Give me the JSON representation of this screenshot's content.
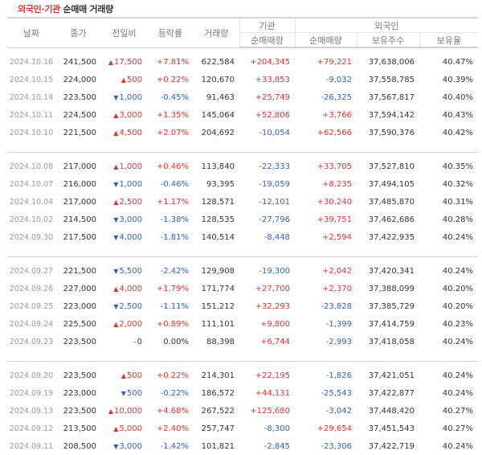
{
  "title": {
    "part1": "외국인",
    "sep": "·",
    "part2": "기관",
    "part3": "순매매 거래량"
  },
  "headers": {
    "date": "날짜",
    "close": "종가",
    "change": "전일비",
    "rate": "등락률",
    "volume": "거래량",
    "inst_group": "기관",
    "foreign_group": "외국인",
    "inst_net": "순매매량",
    "foreign_net": "순매매량",
    "holdings": "보유주수",
    "holding_rate": "보유율"
  },
  "colors": {
    "up": "#e0332e",
    "down": "#2e5fc8"
  },
  "groups": [
    [
      {
        "date": "2024.10.16",
        "close": "241,500",
        "dir": "up",
        "change": "17,500",
        "rate": "+7.81%",
        "volume": "622,584",
        "inst": "+204,345",
        "foreign": "+79,221",
        "holdings": "37,638,006",
        "holding_rate": "40.47%"
      },
      {
        "date": "2024.10.15",
        "close": "224,000",
        "dir": "up",
        "change": "500",
        "rate": "+0.22%",
        "volume": "120,670",
        "inst": "+33,853",
        "foreign": "-9,032",
        "holdings": "37,558,785",
        "holding_rate": "40.39%"
      },
      {
        "date": "2024.10.14",
        "close": "223,500",
        "dir": "down",
        "change": "1,000",
        "rate": "-0.45%",
        "volume": "91,463",
        "inst": "+25,749",
        "foreign": "-26,325",
        "holdings": "37,567,817",
        "holding_rate": "40.40%"
      },
      {
        "date": "2024.10.11",
        "close": "224,500",
        "dir": "up",
        "change": "3,000",
        "rate": "+1.35%",
        "volume": "145,064",
        "inst": "+52,806",
        "foreign": "+3,766",
        "holdings": "37,594,142",
        "holding_rate": "40.43%"
      },
      {
        "date": "2024.10.10",
        "close": "221,500",
        "dir": "up",
        "change": "4,500",
        "rate": "+2.07%",
        "volume": "204,692",
        "inst": "-10,054",
        "foreign": "+62,566",
        "holdings": "37,590,376",
        "holding_rate": "40.42%"
      }
    ],
    [
      {
        "date": "2024.10.08",
        "close": "217,000",
        "dir": "up",
        "change": "1,000",
        "rate": "+0.46%",
        "volume": "113,840",
        "inst": "-22,333",
        "foreign": "+33,705",
        "holdings": "37,527,810",
        "holding_rate": "40.35%"
      },
      {
        "date": "2024.10.07",
        "close": "216,000",
        "dir": "down",
        "change": "1,000",
        "rate": "-0.46%",
        "volume": "93,395",
        "inst": "-19,059",
        "foreign": "+8,235",
        "holdings": "37,494,105",
        "holding_rate": "40.32%"
      },
      {
        "date": "2024.10.04",
        "close": "217,000",
        "dir": "up",
        "change": "2,500",
        "rate": "+1.17%",
        "volume": "128,571",
        "inst": "-12,101",
        "foreign": "+30,240",
        "holdings": "37,485,870",
        "holding_rate": "40.31%"
      },
      {
        "date": "2024.10.02",
        "close": "214,500",
        "dir": "down",
        "change": "3,000",
        "rate": "-1.38%",
        "volume": "128,535",
        "inst": "-27,796",
        "foreign": "+39,751",
        "holdings": "37,462,686",
        "holding_rate": "40.28%"
      },
      {
        "date": "2024.09.30",
        "close": "217,500",
        "dir": "down",
        "change": "4,000",
        "rate": "-1.81%",
        "volume": "140,514",
        "inst": "-8,448",
        "foreign": "+2,594",
        "holdings": "37,422,935",
        "holding_rate": "40.24%"
      }
    ],
    [
      {
        "date": "2024.09.27",
        "close": "221,500",
        "dir": "down",
        "change": "5,500",
        "rate": "-2.42%",
        "volume": "129,908",
        "inst": "-19,300",
        "foreign": "+2,042",
        "holdings": "37,420,341",
        "holding_rate": "40.24%"
      },
      {
        "date": "2024.09.26",
        "close": "227,000",
        "dir": "up",
        "change": "4,000",
        "rate": "+1.79%",
        "volume": "171,774",
        "inst": "+27,700",
        "foreign": "+2,370",
        "holdings": "37,388,099",
        "holding_rate": "40.20%"
      },
      {
        "date": "2024.09.25",
        "close": "223,000",
        "dir": "down",
        "change": "2,500",
        "rate": "-1.11%",
        "volume": "151,212",
        "inst": "+32,293",
        "foreign": "-23,828",
        "holdings": "37,385,729",
        "holding_rate": "40.20%"
      },
      {
        "date": "2024.09.24",
        "close": "225,500",
        "dir": "up",
        "change": "2,000",
        "rate": "+0.89%",
        "volume": "111,101",
        "inst": "+9,800",
        "foreign": "-1,399",
        "holdings": "37,414,759",
        "holding_rate": "40.23%"
      },
      {
        "date": "2024.09.23",
        "close": "223,500",
        "dir": "flat",
        "change": "0",
        "rate": "0.00%",
        "volume": "88,398",
        "inst": "+6,744",
        "foreign": "-2,993",
        "holdings": "37,418,058",
        "holding_rate": "40.24%"
      }
    ],
    [
      {
        "date": "2024.09.20",
        "close": "223,500",
        "dir": "up",
        "change": "500",
        "rate": "+0.22%",
        "volume": "214,301",
        "inst": "+22,195",
        "foreign": "-1,826",
        "holdings": "37,421,051",
        "holding_rate": "40.24%"
      },
      {
        "date": "2024.09.19",
        "close": "223,000",
        "dir": "down",
        "change": "500",
        "rate": "-0.22%",
        "volume": "186,572",
        "inst": "+44,131",
        "foreign": "-25,543",
        "holdings": "37,422,877",
        "holding_rate": "40.24%"
      },
      {
        "date": "2024.09.13",
        "close": "223,500",
        "dir": "up",
        "change": "10,000",
        "rate": "+4.68%",
        "volume": "267,522",
        "inst": "+125,680",
        "foreign": "-3,042",
        "holdings": "37,448,420",
        "holding_rate": "40.27%"
      },
      {
        "date": "2024.09.12",
        "close": "213,500",
        "dir": "up",
        "change": "5,000",
        "rate": "+2.40%",
        "volume": "257,747",
        "inst": "-8,300",
        "foreign": "+29,654",
        "holdings": "37,451,543",
        "holding_rate": "40.27%"
      },
      {
        "date": "2024.09.11",
        "close": "208,500",
        "dir": "down",
        "change": "3,000",
        "rate": "-1.42%",
        "volume": "101,821",
        "inst": "-2,845",
        "foreign": "-23,306",
        "holdings": "37,422,719",
        "holding_rate": "40.24%"
      }
    ]
  ]
}
